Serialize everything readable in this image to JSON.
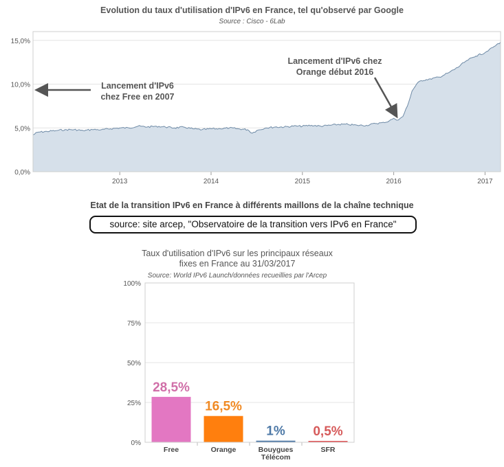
{
  "chart1": {
    "title": "Evolution du taux d'utilisation d'IPv6 en France, tel qu'observé par Google",
    "subtitle": "Source : Cisco - 6Lab",
    "annotations": {
      "free": [
        "Lancement d'IPv6",
        "chez Free en 2007"
      ],
      "orange": [
        "Lancement d'IPv6 chez",
        "Orange début 2016"
      ]
    },
    "colors": {
      "area": "#d6e0ea",
      "line": "#6e8aa6",
      "arrow": "#555555"
    }
  },
  "section": {
    "title": "Etat de la transition IPv6 en France à différents maillons de la chaîne technique",
    "source": "source: site arcep, \"Observatoire de la transition vers IPv6 en France\""
  },
  "chart2": {
    "title_lines": [
      "Taux d'utilisation d'IPv6 sur les principaux réseaux",
      "fixes en France au 31/03/2017"
    ],
    "subtitle": "Source: World IPv6 Launch/données recueillies par l'Arcep"
  },
  "chart_data": [
    {
      "type": "area",
      "ylabel": "",
      "xlabel": "",
      "y_ticks": [
        "0,0%",
        "5,0%",
        "10,0%",
        "15,0%"
      ],
      "x_ticks": [
        "2013",
        "2014",
        "2015",
        "2016",
        "2017"
      ],
      "xlim": [
        2012.05,
        2017.17
      ],
      "ylim": [
        0,
        16
      ],
      "grid": "horizontal",
      "x": [
        2012.05,
        2012.1,
        2012.2,
        2012.3,
        2012.4,
        2012.5,
        2012.6,
        2012.7,
        2012.8,
        2012.9,
        2013.0,
        2013.1,
        2013.2,
        2013.3,
        2013.4,
        2013.5,
        2013.6,
        2013.7,
        2013.8,
        2013.9,
        2014.0,
        2014.1,
        2014.2,
        2014.3,
        2014.4,
        2014.45,
        2014.5,
        2014.6,
        2014.7,
        2014.8,
        2014.9,
        2015.0,
        2015.1,
        2015.2,
        2015.3,
        2015.4,
        2015.5,
        2015.6,
        2015.7,
        2015.8,
        2015.9,
        2015.95,
        2016.0,
        2016.05,
        2016.1,
        2016.15,
        2016.2,
        2016.25,
        2016.3,
        2016.4,
        2016.5,
        2016.6,
        2016.7,
        2016.8,
        2016.9,
        2017.0,
        2017.05,
        2017.1,
        2017.17
      ],
      "values": [
        4.2,
        4.5,
        4.6,
        4.7,
        4.8,
        4.8,
        4.7,
        4.8,
        4.8,
        4.9,
        5.0,
        5.0,
        5.2,
        5.1,
        5.2,
        5.1,
        5.0,
        5.1,
        4.9,
        4.8,
        4.9,
        4.9,
        5.0,
        4.9,
        4.8,
        4.4,
        4.7,
        5.0,
        5.1,
        5.1,
        5.2,
        5.2,
        5.3,
        5.2,
        5.3,
        5.4,
        5.4,
        5.3,
        5.3,
        5.5,
        5.6,
        5.8,
        6.1,
        5.9,
        6.3,
        7.5,
        9.2,
        10.0,
        10.4,
        10.6,
        10.8,
        11.3,
        11.9,
        12.7,
        13.2,
        13.6,
        14.0,
        14.3,
        14.8
      ]
    },
    {
      "type": "bar",
      "categories": [
        "Free",
        "Orange",
        "Bouygues Télécom",
        "SFR"
      ],
      "values": [
        28.5,
        16.5,
        1,
        0.5
      ],
      "value_labels": [
        "28,5%",
        "16,5%",
        "1%",
        "0,5%"
      ],
      "colors": [
        "#e377c2",
        "#ff7f0e",
        "#4e79a7",
        "#e15759"
      ],
      "label_colors": [
        "#d06fa8",
        "#f08a24",
        "#4e79a7",
        "#d65a5a"
      ],
      "y_ticks": [
        {
          "label": "0%",
          "v": 0
        },
        {
          "label": "25%",
          "v": 25
        },
        {
          "label": "50%",
          "v": 50
        },
        {
          "label": "75%",
          "v": 75
        },
        {
          "label": "100%",
          "v": 100
        }
      ],
      "ylim": [
        0,
        100
      ],
      "grid": "horizontal"
    }
  ]
}
